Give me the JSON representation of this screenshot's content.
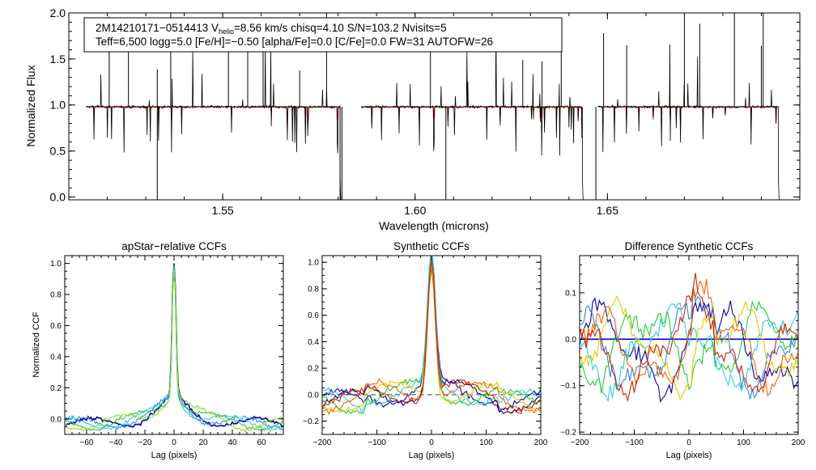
{
  "main_spectrum": {
    "info_line1_pre": "2M14210171−0514413  V",
    "info_line1_sub": "helio",
    "info_line1_post": "=8.56 km/s  chisq=4.10  S/N=103.2  Nvisits=5",
    "info_line2": "Teff=6,500 logg=5.0 [Fe/H]=−0.50 [alpha/Fe]=0.0 [C/Fe]=0.0 FW=31 AUTOFW=26"
  },
  "chart_data": [
    {
      "id": "main",
      "type": "line",
      "title": "",
      "xlabel": "Wavelength (microns)",
      "ylabel": "Normalized Flux",
      "xlim": [
        1.51,
        1.7
      ],
      "ylim": [
        -0.03,
        2.0
      ],
      "xticks": [
        1.55,
        1.6,
        1.65
      ],
      "xtick_labels": [
        "1.55",
        "1.60",
        "1.65"
      ],
      "yticks": [
        0.0,
        0.5,
        1.0,
        1.5,
        2.0
      ],
      "ytick_labels": [
        "0.0",
        "0.5",
        "1.0",
        "1.5",
        "2.0"
      ],
      "chips": [
        [
          1.5145,
          1.5805
        ],
        [
          1.586,
          1.6435
        ],
        [
          1.6475,
          1.6945
        ]
      ],
      "continuum": 0.98,
      "series": [
        {
          "name": "observed spectrum",
          "color": "#000000"
        },
        {
          "name": "synthetic model",
          "color": "#dd1111"
        }
      ]
    },
    {
      "id": "apstar",
      "type": "line",
      "title": "apStar−relative CCFs",
      "xlabel": "Lag (pixels)",
      "ylabel": "Normalized CCF",
      "xlim": [
        -75,
        75
      ],
      "ylim": [
        -0.1,
        1.05
      ],
      "xticks": [
        -60,
        -40,
        -20,
        0,
        20,
        40,
        60
      ],
      "xtick_labels": [
        "−60",
        "−40",
        "−20",
        "0",
        "20",
        "40",
        "60"
      ],
      "yticks": [
        0.0,
        0.2,
        0.4,
        0.6,
        0.8,
        1.0
      ],
      "ytick_labels": [
        "0.0",
        "0.2",
        "0.4",
        "0.6",
        "0.8",
        "1.0"
      ],
      "series": [
        {
          "name": "visit 1",
          "color": "#0000aa"
        },
        {
          "name": "visit 2",
          "color": "#2a8ad8"
        },
        {
          "name": "visit 3",
          "color": "#33ccee"
        },
        {
          "name": "visit 4",
          "color": "#2ec040"
        },
        {
          "name": "visit 5",
          "color": "#8ae020"
        }
      ]
    },
    {
      "id": "synth",
      "type": "line",
      "title": "Synthetic CCFs",
      "xlabel": "Lag (pixels)",
      "ylabel": "",
      "xlim": [
        -200,
        200
      ],
      "ylim": [
        -0.3,
        1.05
      ],
      "xticks": [
        -200,
        -100,
        0,
        100,
        200
      ],
      "xtick_labels": [
        "−200",
        "−100",
        "0",
        "100",
        "200"
      ],
      "yticks": [
        -0.2,
        0.0,
        0.2,
        0.4,
        0.6,
        0.8,
        1.0
      ],
      "ytick_labels": [
        "−0.2",
        "0.0",
        "0.2",
        "0.4",
        "0.6",
        "0.8",
        "1.0"
      ],
      "zero_line": true,
      "series": [
        {
          "name": "visit 1",
          "color": "#000066"
        },
        {
          "name": "visit 2",
          "color": "#0000cc"
        },
        {
          "name": "visit 3",
          "color": "#33ccdd"
        },
        {
          "name": "visit 4",
          "color": "#22cc33"
        },
        {
          "name": "visit 5",
          "color": "#ddcc00"
        },
        {
          "name": "visit 6",
          "color": "#ee6600"
        },
        {
          "name": "visit 7",
          "color": "#cc2200"
        }
      ]
    },
    {
      "id": "diff",
      "type": "line",
      "title": "Difference Synthetic CCFs",
      "xlabel": "Lag (pixels)",
      "ylabel": "",
      "xlim": [
        -200,
        200
      ],
      "ylim": [
        -0.205,
        0.18
      ],
      "xticks": [
        -200,
        -100,
        0,
        100,
        200
      ],
      "xtick_labels": [
        "−200",
        "−100",
        "0",
        "100",
        "200"
      ],
      "yticks": [
        -0.2,
        -0.1,
        0.0,
        0.1
      ],
      "ytick_labels": [
        "−0.2",
        "−0.1",
        "0.0",
        "0.1"
      ],
      "zero_line": true,
      "series": [
        {
          "name": "visit 1",
          "color": "#0000aa"
        },
        {
          "name": "visit 2",
          "color": "#2a8ad8"
        },
        {
          "name": "visit 3",
          "color": "#33ccdd"
        },
        {
          "name": "visit 4",
          "color": "#22cc33"
        },
        {
          "name": "visit 5",
          "color": "#ddcc00"
        },
        {
          "name": "visit 6",
          "color": "#ee6600"
        },
        {
          "name": "visit 7",
          "color": "#cc2200"
        }
      ]
    }
  ]
}
